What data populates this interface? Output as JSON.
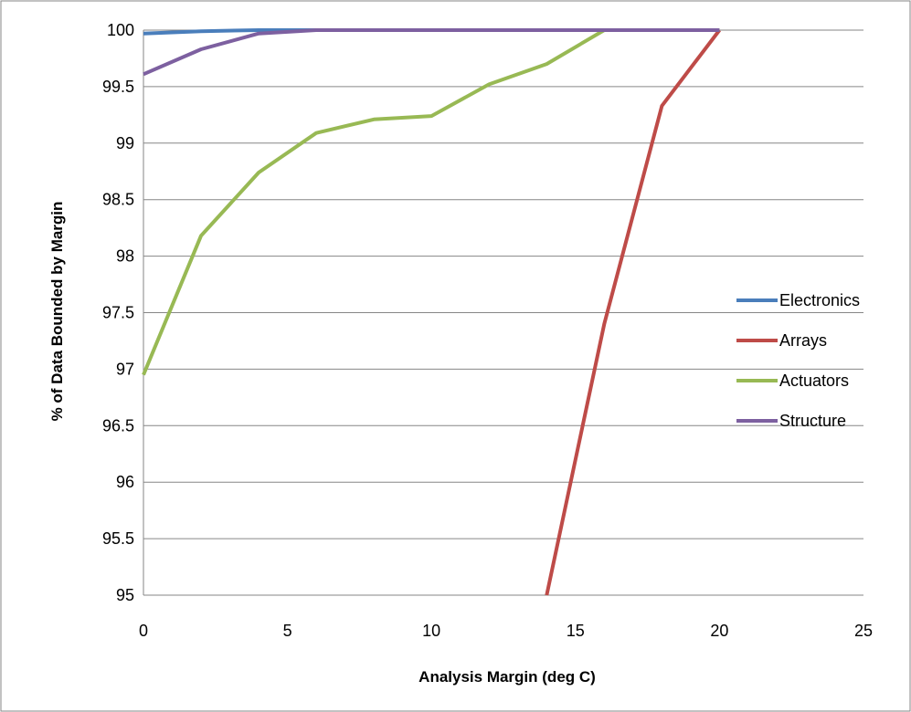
{
  "chart_data": {
    "type": "line",
    "title": "",
    "xlabel": "Analysis Margin  (deg C)",
    "ylabel": "% of Data Bounded by  Margin",
    "xlim": [
      0,
      25
    ],
    "ylim": [
      95,
      100
    ],
    "xticks": [
      "0",
      "5",
      "10",
      "15",
      "20",
      "25"
    ],
    "yticks": [
      "95",
      "95.5",
      "96",
      "96.5",
      "97",
      "97.5",
      "98",
      "98.5",
      "99",
      "99.5",
      "100"
    ],
    "grid": "horizontal",
    "legend_position": "right",
    "series": [
      {
        "name": "Electronics",
        "color": "#4A7EBB",
        "points": [
          [
            0,
            99.97
          ],
          [
            2,
            99.99
          ],
          [
            4,
            100
          ],
          [
            6,
            100
          ],
          [
            8,
            100
          ],
          [
            10,
            100
          ],
          [
            12,
            100
          ],
          [
            14,
            100
          ],
          [
            16,
            100
          ],
          [
            18,
            100
          ],
          [
            20,
            100
          ]
        ]
      },
      {
        "name": "Arrays",
        "color": "#BE4B48",
        "points": [
          [
            14,
            95
          ],
          [
            16,
            97.4
          ],
          [
            18,
            99.33
          ],
          [
            20,
            100
          ]
        ]
      },
      {
        "name": "Actuators",
        "color": "#98B954",
        "points": [
          [
            0,
            96.95
          ],
          [
            2,
            98.18
          ],
          [
            4,
            98.74
          ],
          [
            6,
            99.09
          ],
          [
            8,
            99.21
          ],
          [
            10,
            99.24
          ],
          [
            12,
            99.52
          ],
          [
            14,
            99.7
          ],
          [
            16,
            100
          ],
          [
            18,
            100
          ],
          [
            20,
            100
          ]
        ]
      },
      {
        "name": "Structure",
        "color": "#7D60A0",
        "points": [
          [
            0,
            99.61
          ],
          [
            2,
            99.83
          ],
          [
            4,
            99.97
          ],
          [
            6,
            100
          ],
          [
            8,
            100
          ],
          [
            10,
            100
          ],
          [
            12,
            100
          ],
          [
            14,
            100
          ],
          [
            16,
            100
          ],
          [
            18,
            100
          ],
          [
            20,
            100
          ]
        ]
      }
    ]
  }
}
